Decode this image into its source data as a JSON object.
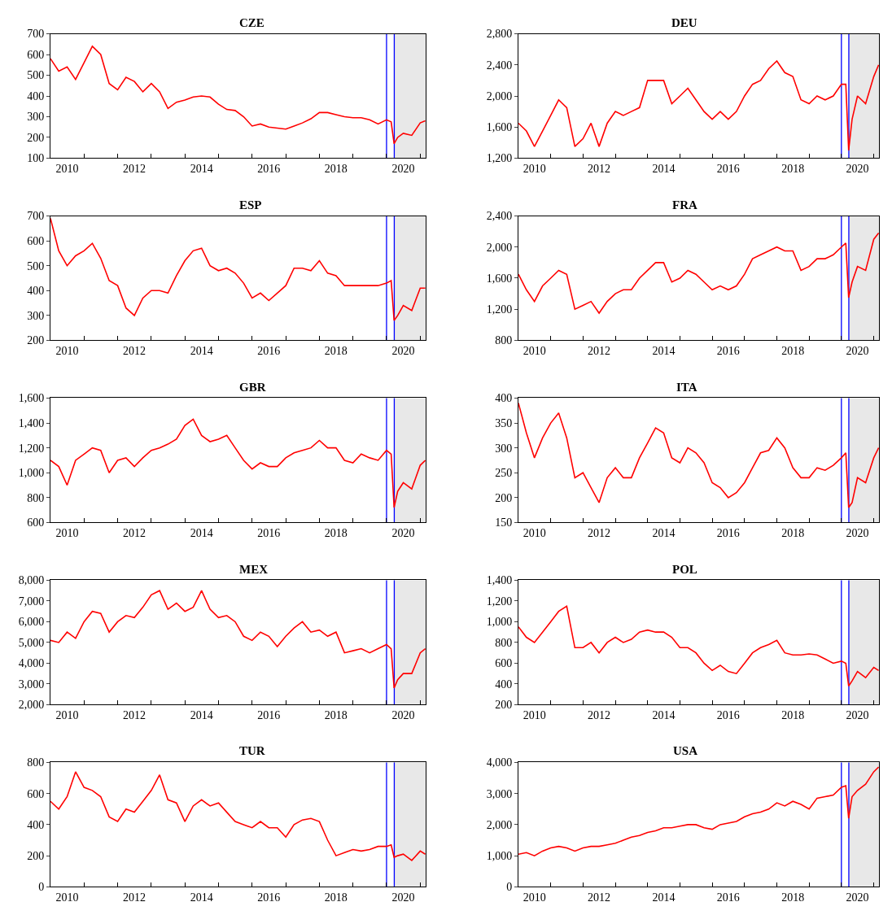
{
  "chart_data": [
    {
      "type": "line",
      "title": "CZE",
      "color": "#ff0000",
      "xlim": [
        "2010-01-01",
        "2021-03-01"
      ],
      "ylim": [
        100,
        700
      ],
      "yticks": [
        100,
        200,
        300,
        400,
        500,
        600,
        700
      ],
      "grid": false,
      "x": [
        "2010-01",
        "2010-04",
        "2010-07",
        "2010-10",
        "2011-01",
        "2011-04",
        "2011-07",
        "2011-10",
        "2012-01",
        "2012-04",
        "2012-07",
        "2012-10",
        "2013-01",
        "2013-04",
        "2013-07",
        "2013-10",
        "2014-01",
        "2014-04",
        "2014-07",
        "2014-10",
        "2015-01",
        "2015-04",
        "2015-07",
        "2015-10",
        "2016-01",
        "2016-04",
        "2016-07",
        "2016-10",
        "2017-01",
        "2017-04",
        "2017-07",
        "2017-10",
        "2018-01",
        "2018-04",
        "2018-07",
        "2018-10",
        "2019-01",
        "2019-04",
        "2019-07",
        "2019-10",
        "2020-01",
        "2020-02-20",
        "2020-03-23",
        "2020-05",
        "2020-07",
        "2020-10",
        "2021-01",
        "2021-02-25"
      ],
      "values": [
        580,
        520,
        540,
        480,
        560,
        640,
        600,
        460,
        430,
        490,
        470,
        420,
        460,
        420,
        340,
        370,
        380,
        395,
        400,
        395,
        360,
        335,
        330,
        300,
        255,
        265,
        250,
        245,
        240,
        255,
        270,
        290,
        320,
        320,
        310,
        300,
        295,
        295,
        285,
        265,
        285,
        275,
        170,
        200,
        220,
        210,
        270,
        280
      ],
      "xticks": [
        {
          "value": "2010-07-01",
          "label": "2010"
        },
        {
          "value": "2012-07-01",
          "label": "2012"
        },
        {
          "value": "2014-07-01",
          "label": "2014"
        },
        {
          "value": "2016-07-01",
          "label": "2016"
        },
        {
          "value": "2018-07-01",
          "label": "2018"
        },
        {
          "value": "2020-07-01",
          "label": "2020"
        },
        {
          "value": "2011-01-01",
          "label": null
        },
        {
          "value": "2012-01-01",
          "label": null
        },
        {
          "value": "2013-01-01",
          "label": null
        },
        {
          "value": "2014-01-01",
          "label": null
        },
        {
          "value": "2015-01-01",
          "label": null
        },
        {
          "value": "2016-01-01",
          "label": null
        },
        {
          "value": "2017-01-01",
          "label": null
        },
        {
          "value": "2018-01-01",
          "label": null
        },
        {
          "value": "2019-01-01",
          "label": null
        },
        {
          "value": "2020-01-01",
          "label": null
        },
        {
          "value": "2021-01-01",
          "label": null
        }
      ],
      "ref_lines": [
        {
          "axis": "x",
          "value": "2020-01-01",
          "color": "#0000ff"
        },
        {
          "axis": "x",
          "value": "2020-03-25",
          "color": "#0000ff"
        }
      ],
      "bands": [
        {
          "axis": "x",
          "from": "2020-03-25",
          "to": "2021-03-01",
          "color": "#e8e8e8"
        }
      ]
    },
    {
      "type": "line",
      "title": "DEU",
      "color": "#ff0000",
      "xlim": [
        "2010-01-01",
        "2021-03-01"
      ],
      "ylim": [
        1200,
        2800
      ],
      "yticks": [
        {
          "value": 1200,
          "label": "1,200"
        },
        {
          "value": 1600,
          "label": "1,600"
        },
        {
          "value": 2000,
          "label": "2,000"
        },
        {
          "value": 2400,
          "label": "2,400"
        },
        {
          "value": 2800,
          "label": "2,800"
        }
      ],
      "grid": false,
      "x": [
        "2010-01",
        "2010-04",
        "2010-07",
        "2010-10",
        "2011-01",
        "2011-04",
        "2011-07",
        "2011-10",
        "2012-01",
        "2012-04",
        "2012-07",
        "2012-10",
        "2013-01",
        "2013-04",
        "2013-07",
        "2013-10",
        "2014-01",
        "2014-04",
        "2014-07",
        "2014-10",
        "2015-01",
        "2015-04",
        "2015-07",
        "2015-10",
        "2016-01",
        "2016-04",
        "2016-07",
        "2016-10",
        "2017-01",
        "2017-04",
        "2017-07",
        "2017-10",
        "2018-01",
        "2018-04",
        "2018-07",
        "2018-10",
        "2019-01",
        "2019-04",
        "2019-07",
        "2019-10",
        "2020-01",
        "2020-02-20",
        "2020-03-23",
        "2020-05",
        "2020-07",
        "2020-10",
        "2021-01",
        "2021-02-25"
      ],
      "values": [
        1650,
        1550,
        1350,
        1550,
        1750,
        1950,
        1850,
        1350,
        1450,
        1650,
        1350,
        1650,
        1800,
        1750,
        1800,
        1850,
        2200,
        2200,
        2200,
        1900,
        2000,
        2100,
        1950,
        1800,
        1700,
        1800,
        1700,
        1800,
        2000,
        2150,
        2200,
        2350,
        2450,
        2300,
        2250,
        1950,
        1900,
        2000,
        1950,
        2000,
        2150,
        2150,
        1300,
        1700,
        2000,
        1900,
        2250,
        2400
      ],
      "xticks": [
        {
          "value": "2010-07-01",
          "label": "2010"
        },
        {
          "value": "2012-07-01",
          "label": "2012"
        },
        {
          "value": "2014-07-01",
          "label": "2014"
        },
        {
          "value": "2016-07-01",
          "label": "2016"
        },
        {
          "value": "2018-07-01",
          "label": "2018"
        },
        {
          "value": "2020-07-01",
          "label": "2020"
        },
        {
          "value": "2011-01-01",
          "label": null
        },
        {
          "value": "2012-01-01",
          "label": null
        },
        {
          "value": "2013-01-01",
          "label": null
        },
        {
          "value": "2014-01-01",
          "label": null
        },
        {
          "value": "2015-01-01",
          "label": null
        },
        {
          "value": "2016-01-01",
          "label": null
        },
        {
          "value": "2017-01-01",
          "label": null
        },
        {
          "value": "2018-01-01",
          "label": null
        },
        {
          "value": "2019-01-01",
          "label": null
        },
        {
          "value": "2020-01-01",
          "label": null
        },
        {
          "value": "2021-01-01",
          "label": null
        }
      ],
      "ref_lines": [
        {
          "axis": "x",
          "value": "2020-01-01",
          "color": "#0000ff"
        },
        {
          "axis": "x",
          "value": "2020-03-25",
          "color": "#0000ff"
        }
      ],
      "bands": [
        {
          "axis": "x",
          "from": "2020-03-25",
          "to": "2021-03-01",
          "color": "#e8e8e8"
        }
      ]
    },
    {
      "type": "line",
      "title": "ESP",
      "color": "#ff0000",
      "xlim": [
        "2010-01-01",
        "2021-03-01"
      ],
      "ylim": [
        200,
        700
      ],
      "yticks": [
        200,
        300,
        400,
        500,
        600,
        700
      ],
      "grid": false,
      "x": [
        "2010-01",
        "2010-04",
        "2010-07",
        "2010-10",
        "2011-01",
        "2011-04",
        "2011-07",
        "2011-10",
        "2012-01",
        "2012-04",
        "2012-07",
        "2012-10",
        "2013-01",
        "2013-04",
        "2013-07",
        "2013-10",
        "2014-01",
        "2014-04",
        "2014-07",
        "2014-10",
        "2015-01",
        "2015-04",
        "2015-07",
        "2015-10",
        "2016-01",
        "2016-04",
        "2016-07",
        "2016-10",
        "2017-01",
        "2017-04",
        "2017-07",
        "2017-10",
        "2018-01",
        "2018-04",
        "2018-07",
        "2018-10",
        "2019-01",
        "2019-04",
        "2019-07",
        "2019-10",
        "2020-01",
        "2020-02-20",
        "2020-03-23",
        "2020-05",
        "2020-07",
        "2020-10",
        "2021-01",
        "2021-02-25"
      ],
      "values": [
        690,
        560,
        500,
        540,
        560,
        590,
        530,
        440,
        420,
        330,
        300,
        370,
        400,
        400,
        390,
        460,
        520,
        560,
        570,
        500,
        480,
        490,
        470,
        430,
        370,
        390,
        360,
        390,
        420,
        490,
        490,
        480,
        520,
        470,
        460,
        420,
        420,
        420,
        420,
        420,
        430,
        440,
        280,
        300,
        340,
        320,
        410,
        410
      ],
      "xticks": [
        {
          "value": "2010-07-01",
          "label": "2010"
        },
        {
          "value": "2012-07-01",
          "label": "2012"
        },
        {
          "value": "2014-07-01",
          "label": "2014"
        },
        {
          "value": "2016-07-01",
          "label": "2016"
        },
        {
          "value": "2018-07-01",
          "label": "2018"
        },
        {
          "value": "2020-07-01",
          "label": "2020"
        },
        {
          "value": "2011-01-01",
          "label": null
        },
        {
          "value": "2012-01-01",
          "label": null
        },
        {
          "value": "2013-01-01",
          "label": null
        },
        {
          "value": "2014-01-01",
          "label": null
        },
        {
          "value": "2015-01-01",
          "label": null
        },
        {
          "value": "2016-01-01",
          "label": null
        },
        {
          "value": "2017-01-01",
          "label": null
        },
        {
          "value": "2018-01-01",
          "label": null
        },
        {
          "value": "2019-01-01",
          "label": null
        },
        {
          "value": "2020-01-01",
          "label": null
        },
        {
          "value": "2021-01-01",
          "label": null
        }
      ],
      "ref_lines": [
        {
          "axis": "x",
          "value": "2020-01-01",
          "color": "#0000ff"
        },
        {
          "axis": "x",
          "value": "2020-03-25",
          "color": "#0000ff"
        }
      ],
      "bands": [
        {
          "axis": "x",
          "from": "2020-03-25",
          "to": "2021-03-01",
          "color": "#e8e8e8"
        }
      ]
    },
    {
      "type": "line",
      "title": "FRA",
      "color": "#ff0000",
      "xlim": [
        "2010-01-01",
        "2021-03-01"
      ],
      "ylim": [
        800,
        2400
      ],
      "yticks": [
        {
          "value": 800,
          "label": "800"
        },
        {
          "value": 1200,
          "label": "1,200"
        },
        {
          "value": 1600,
          "label": "1,600"
        },
        {
          "value": 2000,
          "label": "2,000"
        },
        {
          "value": 2400,
          "label": "2,400"
        }
      ],
      "grid": false,
      "x": [
        "2010-01",
        "2010-04",
        "2010-07",
        "2010-10",
        "2011-01",
        "2011-04",
        "2011-07",
        "2011-10",
        "2012-01",
        "2012-04",
        "2012-07",
        "2012-10",
        "2013-01",
        "2013-04",
        "2013-07",
        "2013-10",
        "2014-01",
        "2014-04",
        "2014-07",
        "2014-10",
        "2015-01",
        "2015-04",
        "2015-07",
        "2015-10",
        "2016-01",
        "2016-04",
        "2016-07",
        "2016-10",
        "2017-01",
        "2017-04",
        "2017-07",
        "2017-10",
        "2018-01",
        "2018-04",
        "2018-07",
        "2018-10",
        "2019-01",
        "2019-04",
        "2019-07",
        "2019-10",
        "2020-01",
        "2020-02-20",
        "2020-03-23",
        "2020-05",
        "2020-07",
        "2020-10",
        "2021-01",
        "2021-02-25"
      ],
      "values": [
        1650,
        1450,
        1300,
        1500,
        1600,
        1700,
        1650,
        1200,
        1250,
        1300,
        1150,
        1300,
        1400,
        1450,
        1450,
        1600,
        1700,
        1800,
        1800,
        1550,
        1600,
        1700,
        1650,
        1550,
        1450,
        1500,
        1450,
        1500,
        1650,
        1850,
        1900,
        1950,
        2000,
        1950,
        1950,
        1700,
        1750,
        1850,
        1850,
        1900,
        2000,
        2050,
        1350,
        1550,
        1750,
        1700,
        2100,
        2180
      ],
      "xticks": [
        {
          "value": "2010-07-01",
          "label": "2010"
        },
        {
          "value": "2012-07-01",
          "label": "2012"
        },
        {
          "value": "2014-07-01",
          "label": "2014"
        },
        {
          "value": "2016-07-01",
          "label": "2016"
        },
        {
          "value": "2018-07-01",
          "label": "2018"
        },
        {
          "value": "2020-07-01",
          "label": "2020"
        },
        {
          "value": "2011-01-01",
          "label": null
        },
        {
          "value": "2012-01-01",
          "label": null
        },
        {
          "value": "2013-01-01",
          "label": null
        },
        {
          "value": "2014-01-01",
          "label": null
        },
        {
          "value": "2015-01-01",
          "label": null
        },
        {
          "value": "2016-01-01",
          "label": null
        },
        {
          "value": "2017-01-01",
          "label": null
        },
        {
          "value": "2018-01-01",
          "label": null
        },
        {
          "value": "2019-01-01",
          "label": null
        },
        {
          "value": "2020-01-01",
          "label": null
        },
        {
          "value": "2021-01-01",
          "label": null
        }
      ],
      "ref_lines": [
        {
          "axis": "x",
          "value": "2020-01-01",
          "color": "#0000ff"
        },
        {
          "axis": "x",
          "value": "2020-03-25",
          "color": "#0000ff"
        }
      ],
      "bands": [
        {
          "axis": "x",
          "from": "2020-03-25",
          "to": "2021-03-01",
          "color": "#e8e8e8"
        }
      ]
    },
    {
      "type": "line",
      "title": "GBR",
      "color": "#ff0000",
      "xlim": [
        "2010-01-01",
        "2021-03-01"
      ],
      "ylim": [
        600,
        1600
      ],
      "yticks": [
        {
          "value": 600,
          "label": "600"
        },
        {
          "value": 800,
          "label": "800"
        },
        {
          "value": 1000,
          "label": "1,000"
        },
        {
          "value": 1200,
          "label": "1,200"
        },
        {
          "value": 1400,
          "label": "1,400"
        },
        {
          "value": 1600,
          "label": "1,600"
        }
      ],
      "grid": false,
      "x": [
        "2010-01",
        "2010-04",
        "2010-07",
        "2010-10",
        "2011-01",
        "2011-04",
        "2011-07",
        "2011-10",
        "2012-01",
        "2012-04",
        "2012-07",
        "2012-10",
        "2013-01",
        "2013-04",
        "2013-07",
        "2013-10",
        "2014-01",
        "2014-04",
        "2014-07",
        "2014-10",
        "2015-01",
        "2015-04",
        "2015-07",
        "2015-10",
        "2016-01",
        "2016-04",
        "2016-07",
        "2016-10",
        "2017-01",
        "2017-04",
        "2017-07",
        "2017-10",
        "2018-01",
        "2018-04",
        "2018-07",
        "2018-10",
        "2019-01",
        "2019-04",
        "2019-07",
        "2019-10",
        "2020-01",
        "2020-02-20",
        "2020-03-23",
        "2020-05",
        "2020-07",
        "2020-10",
        "2021-01",
        "2021-02-25"
      ],
      "values": [
        1100,
        1050,
        900,
        1100,
        1150,
        1200,
        1180,
        1000,
        1100,
        1120,
        1050,
        1120,
        1180,
        1200,
        1230,
        1270,
        1380,
        1430,
        1300,
        1250,
        1270,
        1300,
        1200,
        1100,
        1030,
        1080,
        1050,
        1050,
        1120,
        1160,
        1180,
        1200,
        1260,
        1200,
        1200,
        1100,
        1080,
        1150,
        1120,
        1100,
        1180,
        1150,
        720,
        850,
        920,
        870,
        1060,
        1100
      ],
      "xticks": [
        {
          "value": "2010-07-01",
          "label": "2010"
        },
        {
          "value": "2012-07-01",
          "label": "2012"
        },
        {
          "value": "2014-07-01",
          "label": "2014"
        },
        {
          "value": "2016-07-01",
          "label": "2016"
        },
        {
          "value": "2018-07-01",
          "label": "2018"
        },
        {
          "value": "2020-07-01",
          "label": "2020"
        },
        {
          "value": "2011-01-01",
          "label": null
        },
        {
          "value": "2012-01-01",
          "label": null
        },
        {
          "value": "2013-01-01",
          "label": null
        },
        {
          "value": "2014-01-01",
          "label": null
        },
        {
          "value": "2015-01-01",
          "label": null
        },
        {
          "value": "2016-01-01",
          "label": null
        },
        {
          "value": "2017-01-01",
          "label": null
        },
        {
          "value": "2018-01-01",
          "label": null
        },
        {
          "value": "2019-01-01",
          "label": null
        },
        {
          "value": "2020-01-01",
          "label": null
        },
        {
          "value": "2021-01-01",
          "label": null
        }
      ],
      "ref_lines": [
        {
          "axis": "x",
          "value": "2020-01-01",
          "color": "#0000ff"
        },
        {
          "axis": "x",
          "value": "2020-03-25",
          "color": "#0000ff"
        }
      ],
      "bands": [
        {
          "axis": "x",
          "from": "2020-03-25",
          "to": "2021-03-01",
          "color": "#e8e8e8"
        }
      ]
    },
    {
      "type": "line",
      "title": "ITA",
      "color": "#ff0000",
      "xlim": [
        "2010-01-01",
        "2021-03-01"
      ],
      "ylim": [
        150,
        400
      ],
      "yticks": [
        150,
        200,
        250,
        300,
        350,
        400
      ],
      "grid": false,
      "x": [
        "2010-01",
        "2010-04",
        "2010-07",
        "2010-10",
        "2011-01",
        "2011-04",
        "2011-07",
        "2011-10",
        "2012-01",
        "2012-04",
        "2012-07",
        "2012-10",
        "2013-01",
        "2013-04",
        "2013-07",
        "2013-10",
        "2014-01",
        "2014-04",
        "2014-07",
        "2014-10",
        "2015-01",
        "2015-04",
        "2015-07",
        "2015-10",
        "2016-01",
        "2016-04",
        "2016-07",
        "2016-10",
        "2017-01",
        "2017-04",
        "2017-07",
        "2017-10",
        "2018-01",
        "2018-04",
        "2018-07",
        "2018-10",
        "2019-01",
        "2019-04",
        "2019-07",
        "2019-10",
        "2020-01",
        "2020-02-20",
        "2020-03-23",
        "2020-05",
        "2020-07",
        "2020-10",
        "2021-01",
        "2021-02-25"
      ],
      "values": [
        390,
        330,
        280,
        320,
        350,
        370,
        320,
        240,
        250,
        220,
        190,
        240,
        260,
        240,
        240,
        280,
        310,
        340,
        330,
        280,
        270,
        300,
        290,
        270,
        230,
        220,
        200,
        210,
        230,
        260,
        290,
        295,
        320,
        300,
        260,
        240,
        240,
        260,
        255,
        265,
        280,
        290,
        180,
        190,
        240,
        230,
        280,
        300
      ],
      "xticks": [
        {
          "value": "2010-07-01",
          "label": "2010"
        },
        {
          "value": "2012-07-01",
          "label": "2012"
        },
        {
          "value": "2014-07-01",
          "label": "2014"
        },
        {
          "value": "2016-07-01",
          "label": "2016"
        },
        {
          "value": "2018-07-01",
          "label": "2018"
        },
        {
          "value": "2020-07-01",
          "label": "2020"
        },
        {
          "value": "2011-01-01",
          "label": null
        },
        {
          "value": "2012-01-01",
          "label": null
        },
        {
          "value": "2013-01-01",
          "label": null
        },
        {
          "value": "2014-01-01",
          "label": null
        },
        {
          "value": "2015-01-01",
          "label": null
        },
        {
          "value": "2016-01-01",
          "label": null
        },
        {
          "value": "2017-01-01",
          "label": null
        },
        {
          "value": "2018-01-01",
          "label": null
        },
        {
          "value": "2019-01-01",
          "label": null
        },
        {
          "value": "2020-01-01",
          "label": null
        },
        {
          "value": "2021-01-01",
          "label": null
        }
      ],
      "ref_lines": [
        {
          "axis": "x",
          "value": "2020-01-01",
          "color": "#0000ff"
        },
        {
          "axis": "x",
          "value": "2020-03-25",
          "color": "#0000ff"
        }
      ],
      "bands": [
        {
          "axis": "x",
          "from": "2020-03-25",
          "to": "2021-03-01",
          "color": "#e8e8e8"
        }
      ]
    },
    {
      "type": "line",
      "title": "MEX",
      "color": "#ff0000",
      "xlim": [
        "2010-01-01",
        "2021-03-01"
      ],
      "ylim": [
        2000,
        8000
      ],
      "yticks": [
        {
          "value": 2000,
          "label": "2,000"
        },
        {
          "value": 3000,
          "label": "3,000"
        },
        {
          "value": 4000,
          "label": "4,000"
        },
        {
          "value": 5000,
          "label": "5,000"
        },
        {
          "value": 6000,
          "label": "6,000"
        },
        {
          "value": 7000,
          "label": "7,000"
        },
        {
          "value": 8000,
          "label": "8,000"
        }
      ],
      "grid": false,
      "x": [
        "2010-01",
        "2010-04",
        "2010-07",
        "2010-10",
        "2011-01",
        "2011-04",
        "2011-07",
        "2011-10",
        "2012-01",
        "2012-04",
        "2012-07",
        "2012-10",
        "2013-01",
        "2013-04",
        "2013-07",
        "2013-10",
        "2014-01",
        "2014-04",
        "2014-07",
        "2014-10",
        "2015-01",
        "2015-04",
        "2015-07",
        "2015-10",
        "2016-01",
        "2016-04",
        "2016-07",
        "2016-10",
        "2017-01",
        "2017-04",
        "2017-07",
        "2017-10",
        "2018-01",
        "2018-04",
        "2018-07",
        "2018-10",
        "2019-01",
        "2019-04",
        "2019-07",
        "2019-10",
        "2020-01",
        "2020-02-20",
        "2020-03-23",
        "2020-05",
        "2020-07",
        "2020-10",
        "2021-01",
        "2021-02-25"
      ],
      "values": [
        5100,
        5000,
        5500,
        5200,
        6000,
        6500,
        6400,
        5500,
        6000,
        6300,
        6200,
        6700,
        7300,
        7500,
        6600,
        6900,
        6500,
        6700,
        7500,
        6600,
        6200,
        6300,
        6000,
        5300,
        5100,
        5500,
        5300,
        4800,
        5300,
        5700,
        6000,
        5500,
        5600,
        5300,
        5500,
        4500,
        4600,
        4700,
        4500,
        4700,
        4900,
        4700,
        2800,
        3200,
        3500,
        3500,
        4500,
        4700
      ],
      "xticks": [
        {
          "value": "2010-07-01",
          "label": "2010"
        },
        {
          "value": "2012-07-01",
          "label": "2012"
        },
        {
          "value": "2014-07-01",
          "label": "2014"
        },
        {
          "value": "2016-07-01",
          "label": "2016"
        },
        {
          "value": "2018-07-01",
          "label": "2018"
        },
        {
          "value": "2020-07-01",
          "label": "2020"
        },
        {
          "value": "2011-01-01",
          "label": null
        },
        {
          "value": "2012-01-01",
          "label": null
        },
        {
          "value": "2013-01-01",
          "label": null
        },
        {
          "value": "2014-01-01",
          "label": null
        },
        {
          "value": "2015-01-01",
          "label": null
        },
        {
          "value": "2016-01-01",
          "label": null
        },
        {
          "value": "2017-01-01",
          "label": null
        },
        {
          "value": "2018-01-01",
          "label": null
        },
        {
          "value": "2019-01-01",
          "label": null
        },
        {
          "value": "2020-01-01",
          "label": null
        },
        {
          "value": "2021-01-01",
          "label": null
        }
      ],
      "ref_lines": [
        {
          "axis": "x",
          "value": "2020-01-01",
          "color": "#0000ff"
        },
        {
          "axis": "x",
          "value": "2020-03-25",
          "color": "#0000ff"
        }
      ],
      "bands": [
        {
          "axis": "x",
          "from": "2020-03-25",
          "to": "2021-03-01",
          "color": "#e8e8e8"
        }
      ]
    },
    {
      "type": "line",
      "title": "POL",
      "color": "#ff0000",
      "xlim": [
        "2010-01-01",
        "2021-03-01"
      ],
      "ylim": [
        200,
        1400
      ],
      "yticks": [
        {
          "value": 200,
          "label": "200"
        },
        {
          "value": 400,
          "label": "400"
        },
        {
          "value": 600,
          "label": "600"
        },
        {
          "value": 800,
          "label": "800"
        },
        {
          "value": 1000,
          "label": "1,000"
        },
        {
          "value": 1200,
          "label": "1,200"
        },
        {
          "value": 1400,
          "label": "1,400"
        }
      ],
      "grid": false,
      "x": [
        "2010-01",
        "2010-04",
        "2010-07",
        "2010-10",
        "2011-01",
        "2011-04",
        "2011-07",
        "2011-10",
        "2012-01",
        "2012-04",
        "2012-07",
        "2012-10",
        "2013-01",
        "2013-04",
        "2013-07",
        "2013-10",
        "2014-01",
        "2014-04",
        "2014-07",
        "2014-10",
        "2015-01",
        "2015-04",
        "2015-07",
        "2015-10",
        "2016-01",
        "2016-04",
        "2016-07",
        "2016-10",
        "2017-01",
        "2017-04",
        "2017-07",
        "2017-10",
        "2018-01",
        "2018-04",
        "2018-07",
        "2018-10",
        "2019-01",
        "2019-04",
        "2019-07",
        "2019-10",
        "2020-01",
        "2020-02-20",
        "2020-03-23",
        "2020-05",
        "2020-07",
        "2020-10",
        "2021-01",
        "2021-02-25"
      ],
      "values": [
        950,
        850,
        800,
        900,
        1000,
        1100,
        1150,
        750,
        750,
        800,
        700,
        800,
        850,
        800,
        830,
        900,
        920,
        900,
        900,
        850,
        750,
        750,
        700,
        600,
        530,
        580,
        520,
        500,
        600,
        700,
        750,
        780,
        820,
        700,
        680,
        680,
        690,
        680,
        640,
        600,
        620,
        600,
        380,
        430,
        520,
        460,
        560,
        530
      ],
      "xticks": [
        {
          "value": "2010-07-01",
          "label": "2010"
        },
        {
          "value": "2012-07-01",
          "label": "2012"
        },
        {
          "value": "2014-07-01",
          "label": "2014"
        },
        {
          "value": "2016-07-01",
          "label": "2016"
        },
        {
          "value": "2018-07-01",
          "label": "2018"
        },
        {
          "value": "2020-07-01",
          "label": "2020"
        },
        {
          "value": "2011-01-01",
          "label": null
        },
        {
          "value": "2012-01-01",
          "label": null
        },
        {
          "value": "2013-01-01",
          "label": null
        },
        {
          "value": "2014-01-01",
          "label": null
        },
        {
          "value": "2015-01-01",
          "label": null
        },
        {
          "value": "2016-01-01",
          "label": null
        },
        {
          "value": "2017-01-01",
          "label": null
        },
        {
          "value": "2018-01-01",
          "label": null
        },
        {
          "value": "2019-01-01",
          "label": null
        },
        {
          "value": "2020-01-01",
          "label": null
        },
        {
          "value": "2021-01-01",
          "label": null
        }
      ],
      "ref_lines": [
        {
          "axis": "x",
          "value": "2020-01-01",
          "color": "#0000ff"
        },
        {
          "axis": "x",
          "value": "2020-03-25",
          "color": "#0000ff"
        }
      ],
      "bands": [
        {
          "axis": "x",
          "from": "2020-03-25",
          "to": "2021-03-01",
          "color": "#e8e8e8"
        }
      ]
    },
    {
      "type": "line",
      "title": "TUR",
      "color": "#ff0000",
      "xlim": [
        "2010-01-01",
        "2021-03-01"
      ],
      "ylim": [
        0,
        800
      ],
      "yticks": [
        0,
        200,
        400,
        600,
        800
      ],
      "grid": false,
      "x": [
        "2010-01",
        "2010-04",
        "2010-07",
        "2010-10",
        "2011-01",
        "2011-04",
        "2011-07",
        "2011-10",
        "2012-01",
        "2012-04",
        "2012-07",
        "2012-10",
        "2013-01",
        "2013-04",
        "2013-07",
        "2013-10",
        "2014-01",
        "2014-04",
        "2014-07",
        "2014-10",
        "2015-01",
        "2015-04",
        "2015-07",
        "2015-10",
        "2016-01",
        "2016-04",
        "2016-07",
        "2016-10",
        "2017-01",
        "2017-04",
        "2017-07",
        "2017-10",
        "2018-01",
        "2018-04",
        "2018-07",
        "2018-10",
        "2019-01",
        "2019-04",
        "2019-07",
        "2019-10",
        "2020-01",
        "2020-02-20",
        "2020-03-23",
        "2020-05",
        "2020-07",
        "2020-10",
        "2021-01",
        "2021-02-25"
      ],
      "values": [
        550,
        500,
        580,
        740,
        640,
        620,
        580,
        450,
        420,
        500,
        480,
        550,
        620,
        720,
        560,
        540,
        420,
        520,
        560,
        520,
        540,
        480,
        420,
        400,
        380,
        420,
        380,
        380,
        320,
        400,
        430,
        440,
        420,
        300,
        200,
        220,
        240,
        230,
        240,
        260,
        260,
        270,
        190,
        200,
        210,
        170,
        230,
        210
      ],
      "xticks": [
        {
          "value": "2010-07-01",
          "label": "2010"
        },
        {
          "value": "2012-07-01",
          "label": "2012"
        },
        {
          "value": "2014-07-01",
          "label": "2014"
        },
        {
          "value": "2016-07-01",
          "label": "2016"
        },
        {
          "value": "2018-07-01",
          "label": "2018"
        },
        {
          "value": "2020-07-01",
          "label": "2020"
        },
        {
          "value": "2011-01-01",
          "label": null
        },
        {
          "value": "2012-01-01",
          "label": null
        },
        {
          "value": "2013-01-01",
          "label": null
        },
        {
          "value": "2014-01-01",
          "label": null
        },
        {
          "value": "2015-01-01",
          "label": null
        },
        {
          "value": "2016-01-01",
          "label": null
        },
        {
          "value": "2017-01-01",
          "label": null
        },
        {
          "value": "2018-01-01",
          "label": null
        },
        {
          "value": "2019-01-01",
          "label": null
        },
        {
          "value": "2020-01-01",
          "label": null
        },
        {
          "value": "2021-01-01",
          "label": null
        }
      ],
      "ref_lines": [
        {
          "axis": "x",
          "value": "2020-01-01",
          "color": "#0000ff"
        },
        {
          "axis": "x",
          "value": "2020-03-25",
          "color": "#0000ff"
        }
      ],
      "bands": [
        {
          "axis": "x",
          "from": "2020-03-25",
          "to": "2021-03-01",
          "color": "#e8e8e8"
        }
      ]
    },
    {
      "type": "line",
      "title": "USA",
      "color": "#ff0000",
      "xlim": [
        "2010-01-01",
        "2021-03-01"
      ],
      "ylim": [
        0,
        4000
      ],
      "yticks": [
        {
          "value": 0,
          "label": "0"
        },
        {
          "value": 1000,
          "label": "1,000"
        },
        {
          "value": 2000,
          "label": "2,000"
        },
        {
          "value": 3000,
          "label": "3,000"
        },
        {
          "value": 4000,
          "label": "4,000"
        }
      ],
      "grid": false,
      "x": [
        "2010-01",
        "2010-04",
        "2010-07",
        "2010-10",
        "2011-01",
        "2011-04",
        "2011-07",
        "2011-10",
        "2012-01",
        "2012-04",
        "2012-07",
        "2012-10",
        "2013-01",
        "2013-04",
        "2013-07",
        "2013-10",
        "2014-01",
        "2014-04",
        "2014-07",
        "2014-10",
        "2015-01",
        "2015-04",
        "2015-07",
        "2015-10",
        "2016-01",
        "2016-04",
        "2016-07",
        "2016-10",
        "2017-01",
        "2017-04",
        "2017-07",
        "2017-10",
        "2018-01",
        "2018-04",
        "2018-07",
        "2018-10",
        "2019-01",
        "2019-04",
        "2019-07",
        "2019-10",
        "2020-01",
        "2020-02-20",
        "2020-03-23",
        "2020-05",
        "2020-07",
        "2020-10",
        "2021-01",
        "2021-02-25"
      ],
      "values": [
        1050,
        1100,
        1000,
        1150,
        1250,
        1300,
        1250,
        1150,
        1250,
        1300,
        1300,
        1350,
        1400,
        1500,
        1600,
        1650,
        1750,
        1800,
        1900,
        1900,
        1950,
        2000,
        2000,
        1900,
        1850,
        2000,
        2050,
        2100,
        2250,
        2350,
        2400,
        2500,
        2700,
        2600,
        2750,
        2650,
        2500,
        2850,
        2900,
        2950,
        3200,
        3250,
        2200,
        2900,
        3100,
        3300,
        3700,
        3850
      ],
      "xticks": [
        {
          "value": "2010-07-01",
          "label": "2010"
        },
        {
          "value": "2012-07-01",
          "label": "2012"
        },
        {
          "value": "2014-07-01",
          "label": "2014"
        },
        {
          "value": "2016-07-01",
          "label": "2016"
        },
        {
          "value": "2018-07-01",
          "label": "2018"
        },
        {
          "value": "2020-07-01",
          "label": "2020"
        },
        {
          "value": "2011-01-01",
          "label": null
        },
        {
          "value": "2012-01-01",
          "label": null
        },
        {
          "value": "2013-01-01",
          "label": null
        },
        {
          "value": "2014-01-01",
          "label": null
        },
        {
          "value": "2015-01-01",
          "label": null
        },
        {
          "value": "2016-01-01",
          "label": null
        },
        {
          "value": "2017-01-01",
          "label": null
        },
        {
          "value": "2018-01-01",
          "label": null
        },
        {
          "value": "2019-01-01",
          "label": null
        },
        {
          "value": "2020-01-01",
          "label": null
        },
        {
          "value": "2021-01-01",
          "label": null
        }
      ],
      "ref_lines": [
        {
          "axis": "x",
          "value": "2020-01-01",
          "color": "#0000ff"
        },
        {
          "axis": "x",
          "value": "2020-03-25",
          "color": "#0000ff"
        }
      ],
      "bands": [
        {
          "axis": "x",
          "from": "2020-03-25",
          "to": "2021-03-01",
          "color": "#e8e8e8"
        }
      ]
    }
  ]
}
